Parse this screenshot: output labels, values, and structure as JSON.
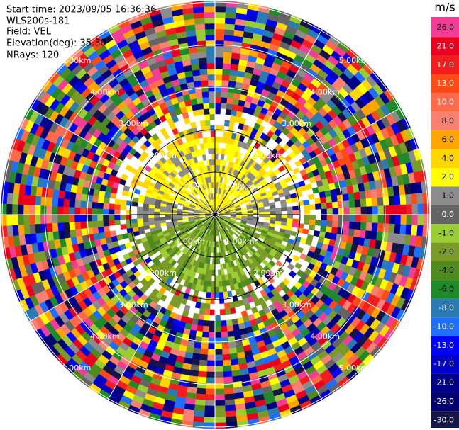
{
  "chart_data": {
    "type": "ppi",
    "info": [
      "Start time: 2023/09/05 16:36:36",
      "WLS200s-181",
      "Field: VEL",
      "Elevation(deg): 35.30",
      "NRays: 120"
    ],
    "range_labels": [
      "1.00km",
      "2.00km",
      "3.00km",
      "4.00km",
      "5.00km"
    ],
    "colorbar": {
      "title": "m/s",
      "ticks": [
        {
          "value": 26,
          "label": "26.0"
        },
        {
          "value": 21,
          "label": "21.0"
        },
        {
          "value": 17,
          "label": "17.0"
        },
        {
          "value": 13,
          "label": "13.0"
        },
        {
          "value": 10,
          "label": "10.0"
        },
        {
          "value": 8,
          "label": "8.0"
        },
        {
          "value": 6,
          "label": "6.0"
        },
        {
          "value": 4,
          "label": "4.0"
        },
        {
          "value": 2,
          "label": "2.0"
        },
        {
          "value": 1,
          "label": "1.0"
        },
        {
          "value": 0,
          "label": "0.0"
        },
        {
          "value": -1,
          "label": "-1.0"
        },
        {
          "value": -2,
          "label": "-2.0"
        },
        {
          "value": -4,
          "label": "-4.0"
        },
        {
          "value": -6,
          "label": "-6.0"
        },
        {
          "value": -8,
          "label": "-8.0"
        },
        {
          "value": -10,
          "label": "-10.0"
        },
        {
          "value": -13,
          "label": "-13.0"
        },
        {
          "value": -17,
          "label": "-17.0"
        },
        {
          "value": -21,
          "label": "-21.0"
        },
        {
          "value": -26,
          "label": "-26.0"
        },
        {
          "value": -30,
          "label": "-30.0"
        }
      ],
      "colors": [
        "#f23c96",
        "#e8001e",
        "#f21e1e",
        "#ff4a14",
        "#ff6a4a",
        "#fa8072",
        "#ffa500",
        "#ffd700",
        "#ffff00",
        "#8c8c8c",
        "#646464",
        "#9acd32",
        "#7a9a28",
        "#4f8a1c",
        "#1e8a2a",
        "#2a7ab4",
        "#1e6eff",
        "#0000ff",
        "#0000c8",
        "#00008c",
        "#000070",
        "#141446"
      ]
    }
  }
}
